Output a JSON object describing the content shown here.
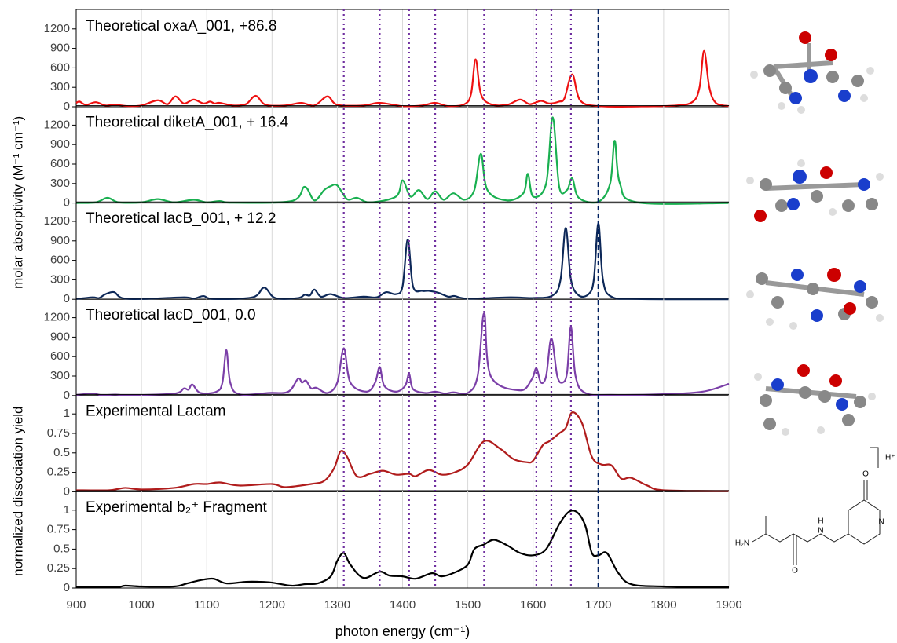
{
  "chart_data": [
    {
      "type": "line",
      "title": "Theoretical oxaA_001, +86.8",
      "ylabel": "molar absorptivity (M⁻¹ cm⁻¹)",
      "color": "#ee1111",
      "xlim": [
        900,
        1900
      ],
      "ylim": [
        0,
        1500
      ],
      "yticks": [
        0,
        300,
        600,
        900,
        1200
      ],
      "x": [
        900,
        905,
        915,
        930,
        945,
        960,
        980,
        1000,
        1025,
        1040,
        1052,
        1065,
        1080,
        1095,
        1105,
        1112,
        1120,
        1140,
        1160,
        1175,
        1190,
        1220,
        1245,
        1265,
        1285,
        1300,
        1340,
        1365,
        1400,
        1430,
        1450,
        1470,
        1495,
        1505,
        1512,
        1520,
        1535,
        1560,
        1580,
        1595,
        1612,
        1625,
        1640,
        1648,
        1660,
        1672,
        1700,
        1760,
        1820,
        1845,
        1855,
        1862,
        1870,
        1880,
        1900
      ],
      "values": [
        60,
        80,
        30,
        70,
        20,
        30,
        10,
        20,
        100,
        40,
        160,
        50,
        110,
        50,
        80,
        50,
        60,
        20,
        40,
        170,
        30,
        20,
        60,
        20,
        160,
        30,
        20,
        60,
        10,
        20,
        60,
        10,
        40,
        200,
        730,
        200,
        40,
        30,
        110,
        40,
        90,
        50,
        80,
        130,
        500,
        100,
        10,
        5,
        20,
        80,
        300,
        860,
        300,
        60,
        10
      ]
    },
    {
      "type": "line",
      "title": "Theoretical diketA_001, + 16.4",
      "color": "#19b050",
      "xlim": [
        900,
        1900
      ],
      "ylim": [
        0,
        1500
      ],
      "yticks": [
        0,
        300,
        600,
        900,
        1200
      ],
      "x": [
        900,
        930,
        948,
        965,
        1000,
        1025,
        1050,
        1080,
        1100,
        1120,
        1140,
        1230,
        1250,
        1265,
        1280,
        1290,
        1300,
        1315,
        1330,
        1350,
        1390,
        1400,
        1412,
        1425,
        1438,
        1450,
        1463,
        1478,
        1495,
        1510,
        1520,
        1530,
        1560,
        1585,
        1592,
        1600,
        1620,
        1630,
        1640,
        1652,
        1660,
        1670,
        1700,
        1718,
        1725,
        1733,
        1760,
        1900
      ],
      "values": [
        0,
        10,
        80,
        10,
        10,
        60,
        10,
        50,
        10,
        30,
        5,
        30,
        250,
        40,
        200,
        260,
        270,
        60,
        80,
        10,
        100,
        350,
        100,
        200,
        60,
        180,
        50,
        150,
        50,
        200,
        760,
        200,
        40,
        150,
        450,
        100,
        300,
        1320,
        250,
        200,
        380,
        80,
        20,
        300,
        960,
        300,
        10,
        0
      ]
    },
    {
      "type": "line",
      "title": "Theoretical lacB_001, + 12.2",
      "color": "#0d2858",
      "xlim": [
        900,
        1900
      ],
      "ylim": [
        0,
        1500
      ],
      "yticks": [
        0,
        300,
        600,
        900,
        1200
      ],
      "x": [
        900,
        925,
        935,
        945,
        958,
        970,
        1000,
        1065,
        1080,
        1095,
        1110,
        1170,
        1188,
        1205,
        1240,
        1250,
        1258,
        1265,
        1275,
        1290,
        1310,
        1340,
        1360,
        1375,
        1390,
        1400,
        1408,
        1416,
        1430,
        1440,
        1455,
        1470,
        1480,
        1500,
        1565,
        1600,
        1630,
        1642,
        1650,
        1658,
        1670,
        1685,
        1693,
        1700,
        1707,
        1720,
        1760,
        1900
      ],
      "values": [
        5,
        30,
        20,
        80,
        110,
        20,
        5,
        30,
        10,
        50,
        5,
        30,
        180,
        20,
        20,
        70,
        60,
        150,
        40,
        80,
        20,
        40,
        30,
        110,
        80,
        200,
        920,
        200,
        130,
        130,
        100,
        40,
        50,
        10,
        30,
        20,
        60,
        300,
        1100,
        300,
        60,
        80,
        300,
        1170,
        300,
        40,
        5,
        0
      ]
    },
    {
      "type": "line",
      "title": "Theoretical lacD_001, 0.0",
      "color": "#7b3fa8",
      "xlim": [
        900,
        1900
      ],
      "ylim": [
        0,
        1500
      ],
      "yticks": [
        0,
        300,
        600,
        900,
        1200
      ],
      "x": [
        900,
        925,
        940,
        960,
        980,
        1050,
        1065,
        1072,
        1078,
        1090,
        1115,
        1124,
        1130,
        1136,
        1150,
        1195,
        1225,
        1240,
        1246,
        1252,
        1260,
        1268,
        1285,
        1300,
        1310,
        1320,
        1345,
        1358,
        1365,
        1372,
        1390,
        1404,
        1410,
        1416,
        1435,
        1450,
        1465,
        1478,
        1500,
        1515,
        1525,
        1535,
        1580,
        1598,
        1605,
        1612,
        1620,
        1628,
        1637,
        1645,
        1652,
        1658,
        1665,
        1680,
        1720,
        1800,
        1860,
        1900
      ],
      "values": [
        10,
        30,
        5,
        15,
        5,
        30,
        110,
        90,
        170,
        40,
        60,
        200,
        700,
        200,
        20,
        40,
        60,
        260,
        200,
        230,
        110,
        120,
        40,
        200,
        730,
        200,
        60,
        200,
        440,
        150,
        60,
        150,
        330,
        100,
        40,
        60,
        30,
        50,
        40,
        300,
        1270,
        300,
        80,
        250,
        420,
        200,
        300,
        880,
        300,
        200,
        350,
        1060,
        300,
        40,
        10,
        20,
        60,
        180
      ]
    },
    {
      "type": "line",
      "title": "Experimental Lactam",
      "ylabel": "normalized dissociation yield",
      "color": "#b01c1c",
      "xlim": [
        900,
        1900
      ],
      "ylim": [
        0,
        1.25
      ],
      "yticks": [
        0,
        0.25,
        0.5,
        0.75,
        1
      ],
      "x": [
        900,
        950,
        975,
        1000,
        1050,
        1080,
        1100,
        1120,
        1150,
        1200,
        1220,
        1260,
        1280,
        1295,
        1305,
        1315,
        1330,
        1350,
        1370,
        1390,
        1410,
        1420,
        1440,
        1460,
        1480,
        1500,
        1525,
        1550,
        1570,
        1590,
        1600,
        1615,
        1625,
        1640,
        1650,
        1660,
        1675,
        1690,
        1705,
        1720,
        1735,
        1750,
        1775,
        1800,
        1900
      ],
      "values": [
        0.02,
        0.02,
        0.05,
        0.03,
        0.05,
        0.1,
        0.1,
        0.12,
        0.08,
        0.1,
        0.06,
        0.1,
        0.14,
        0.3,
        0.52,
        0.45,
        0.2,
        0.23,
        0.27,
        0.22,
        0.23,
        0.2,
        0.28,
        0.22,
        0.25,
        0.35,
        0.65,
        0.55,
        0.42,
        0.38,
        0.4,
        0.6,
        0.65,
        0.75,
        0.82,
        1.02,
        0.88,
        0.45,
        0.35,
        0.34,
        0.17,
        0.18,
        0.08,
        0.02,
        0.01
      ]
    },
    {
      "type": "line",
      "title": "Experimental b₂⁺ Fragment",
      "xlabel": "photon energy (cm⁻¹)",
      "color": "#000000",
      "xlim": [
        900,
        1900
      ],
      "ylim": [
        0,
        1.25
      ],
      "yticks": [
        0,
        0.25,
        0.5,
        0.75,
        1
      ],
      "xticks": [
        900,
        1000,
        1100,
        1200,
        1300,
        1400,
        1500,
        1600,
        1700,
        1800,
        1900
      ],
      "x": [
        900,
        960,
        975,
        1000,
        1050,
        1070,
        1090,
        1110,
        1130,
        1160,
        1180,
        1200,
        1230,
        1250,
        1270,
        1290,
        1300,
        1310,
        1320,
        1340,
        1365,
        1380,
        1400,
        1420,
        1445,
        1460,
        1480,
        1500,
        1510,
        1525,
        1540,
        1560,
        1580,
        1600,
        1620,
        1640,
        1655,
        1668,
        1680,
        1690,
        1700,
        1713,
        1730,
        1750,
        1800,
        1900
      ],
      "values": [
        0.01,
        0.01,
        0.03,
        0.02,
        0.02,
        0.06,
        0.1,
        0.12,
        0.06,
        0.08,
        0.08,
        0.07,
        0.03,
        0.05,
        0.06,
        0.15,
        0.35,
        0.45,
        0.3,
        0.13,
        0.21,
        0.16,
        0.15,
        0.12,
        0.19,
        0.15,
        0.2,
        0.3,
        0.5,
        0.56,
        0.62,
        0.55,
        0.45,
        0.42,
        0.5,
        0.82,
        0.98,
        0.97,
        0.8,
        0.45,
        0.42,
        0.45,
        0.2,
        0.05,
        0.02,
        0.01
      ],
      "markers": [
        {
          "x": 1310,
          "color": "#7030a0",
          "style": "dotted"
        },
        {
          "x": 1365,
          "color": "#7030a0",
          "style": "dotted"
        },
        {
          "x": 1410,
          "color": "#7030a0",
          "style": "dotted"
        },
        {
          "x": 1450,
          "color": "#7030a0",
          "style": "dotted"
        },
        {
          "x": 1525,
          "color": "#7030a0",
          "style": "dotted"
        },
        {
          "x": 1605,
          "color": "#7030a0",
          "style": "dotted"
        },
        {
          "x": 1628,
          "color": "#7030a0",
          "style": "dotted"
        },
        {
          "x": 1658,
          "color": "#7030a0",
          "style": "dotted"
        },
        {
          "x": 1700,
          "color": "#002060",
          "style": "dashed"
        }
      ]
    }
  ],
  "structure": {
    "charge": "H⁺",
    "amine": "H₂N",
    "amide_h": "H",
    "amide_n": "N",
    "amide_o": "O",
    "ring_o": "O",
    "ring_n": "N"
  }
}
